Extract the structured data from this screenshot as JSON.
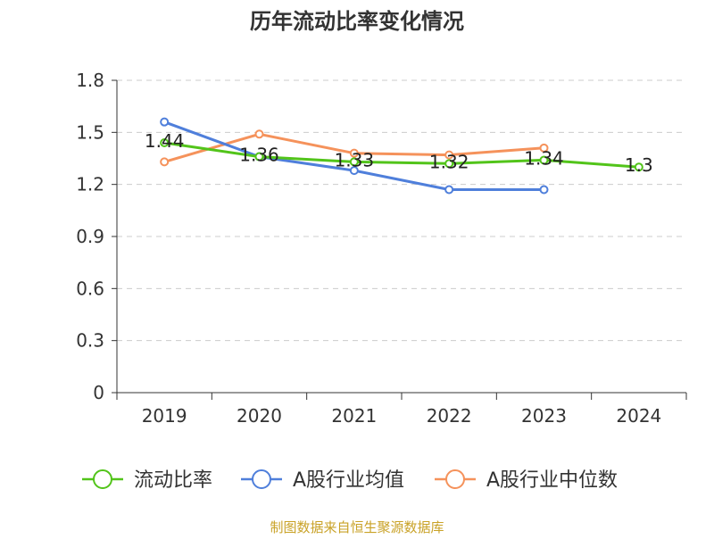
{
  "chart_data": {
    "type": "line",
    "title": "历年流动比率变化情况",
    "xlabel": "",
    "ylabel": "",
    "categories": [
      "2019",
      "2020",
      "2021",
      "2022",
      "2023",
      "2024"
    ],
    "ylim": [
      0,
      1.8
    ],
    "yticks": [
      "0",
      "0.3",
      "0.6",
      "0.9",
      "1.2",
      "1.5",
      "1.8"
    ],
    "grid": true,
    "legend_position": "bottom",
    "series": [
      {
        "name": "流动比率",
        "color": "#52c41a",
        "values": [
          1.44,
          1.36,
          1.33,
          1.32,
          1.34,
          1.3
        ],
        "labels": [
          "1.44",
          "1.36",
          "1.33",
          "1.32",
          "1.34",
          "1.3"
        ]
      },
      {
        "name": "A股行业均值",
        "color": "#4f7fdb",
        "values": [
          1.56,
          1.36,
          1.28,
          1.17,
          1.17,
          null
        ]
      },
      {
        "name": "A股行业中位数",
        "color": "#f5925b",
        "values": [
          1.33,
          1.49,
          1.38,
          1.37,
          1.41,
          null
        ]
      }
    ],
    "source": "制图数据来自恒生聚源数据库"
  }
}
